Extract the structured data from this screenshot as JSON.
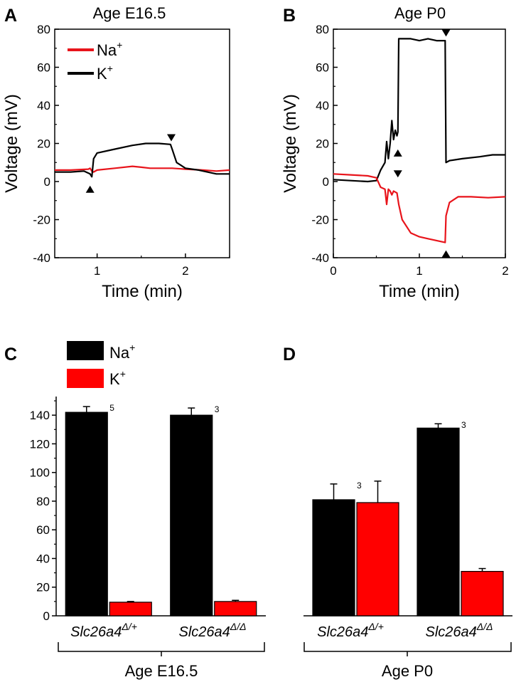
{
  "panels": [
    {
      "letter": "A",
      "title": "Age E16.5"
    },
    {
      "letter": "B",
      "title": "Age P0"
    },
    {
      "letter": "C"
    },
    {
      "letter": "D"
    }
  ],
  "legend_top": [
    {
      "label": "Na",
      "sup": "+",
      "color": "#e8141b"
    },
    {
      "label": "K",
      "sup": "+",
      "color": "#000000"
    }
  ],
  "legend_bottom": [
    {
      "label": "Na",
      "sup": "+",
      "color": "#000000"
    },
    {
      "label": "K",
      "sup": "+",
      "color": "#ff0000"
    }
  ],
  "genotypes": [
    {
      "base": "Slc26a4",
      "sup": "Δ/+"
    },
    {
      "base": "Slc26a4",
      "sup": "Δ/Δ"
    }
  ],
  "group_labels": [
    "Age E16.5",
    "Age P0"
  ],
  "chart_data": [
    {
      "id": "A",
      "type": "line",
      "title": "Age E16.5",
      "xlabel": "Time (min)",
      "ylabel": "Voltage (mV)",
      "xlim": [
        0.52,
        2.5
      ],
      "ylim": [
        -40,
        80
      ],
      "xticks": [
        1,
        2
      ],
      "yticks": [
        -40,
        -20,
        0,
        20,
        40,
        60,
        80
      ],
      "series": [
        {
          "name": "Na+",
          "color": "#e8141b",
          "points": [
            [
              0.52,
              6
            ],
            [
              0.7,
              6
            ],
            [
              0.9,
              6.5
            ],
            [
              0.92,
              7
            ],
            [
              0.94,
              5.5
            ],
            [
              0.96,
              5
            ],
            [
              1.0,
              6
            ],
            [
              1.2,
              7
            ],
            [
              1.4,
              8
            ],
            [
              1.5,
              7.5
            ],
            [
              1.6,
              7
            ],
            [
              1.8,
              7
            ],
            [
              1.85,
              7
            ],
            [
              2.0,
              6.5
            ],
            [
              2.2,
              6
            ],
            [
              2.35,
              5.5
            ],
            [
              2.5,
              6
            ]
          ]
        },
        {
          "name": "K+",
          "color": "#000000",
          "points": [
            [
              0.52,
              5
            ],
            [
              0.7,
              5
            ],
            [
              0.85,
              5.5
            ],
            [
              0.92,
              4
            ],
            [
              0.94,
              2.5
            ],
            [
              0.96,
              12
            ],
            [
              1.0,
              15
            ],
            [
              1.2,
              17
            ],
            [
              1.4,
              19
            ],
            [
              1.55,
              20
            ],
            [
              1.7,
              20
            ],
            [
              1.83,
              19.5
            ],
            [
              1.85,
              17
            ],
            [
              1.9,
              10
            ],
            [
              2.0,
              7
            ],
            [
              2.15,
              6
            ],
            [
              2.35,
              4
            ],
            [
              2.5,
              4
            ]
          ]
        }
      ],
      "markers": [
        {
          "x": 0.92,
          "y": -4,
          "dir": "up"
        },
        {
          "x": 1.84,
          "y": 23,
          "dir": "down"
        }
      ]
    },
    {
      "id": "B",
      "type": "line",
      "title": "Age P0",
      "xlabel": "Time (min)",
      "ylabel": "Voltage (mV)",
      "xlim": [
        0,
        2
      ],
      "ylim": [
        -40,
        80
      ],
      "xticks": [
        0,
        1,
        2
      ],
      "yticks": [
        -40,
        -20,
        0,
        20,
        40,
        60,
        80
      ],
      "series": [
        {
          "name": "K+",
          "color": "#000000",
          "points": [
            [
              0,
              1
            ],
            [
              0.2,
              0.5
            ],
            [
              0.4,
              0
            ],
            [
              0.5,
              0.5
            ],
            [
              0.55,
              6
            ],
            [
              0.6,
              10
            ],
            [
              0.62,
              21
            ],
            [
              0.64,
              12
            ],
            [
              0.66,
              20
            ],
            [
              0.68,
              32
            ],
            [
              0.7,
              22
            ],
            [
              0.72,
              27
            ],
            [
              0.74,
              24
            ],
            [
              0.75,
              26
            ],
            [
              0.76,
              75
            ],
            [
              0.9,
              75
            ],
            [
              1.0,
              74
            ],
            [
              1.1,
              75
            ],
            [
              1.2,
              74
            ],
            [
              1.3,
              74
            ],
            [
              1.31,
              10
            ],
            [
              1.35,
              11
            ],
            [
              1.5,
              12
            ],
            [
              1.7,
              13
            ],
            [
              1.85,
              14
            ],
            [
              2.0,
              14
            ]
          ]
        },
        {
          "name": "Na+",
          "color": "#e8141b",
          "points": [
            [
              0,
              4
            ],
            [
              0.2,
              3.5
            ],
            [
              0.4,
              3
            ],
            [
              0.5,
              2
            ],
            [
              0.55,
              -3
            ],
            [
              0.6,
              -4
            ],
            [
              0.62,
              -12
            ],
            [
              0.64,
              -4
            ],
            [
              0.66,
              -5
            ],
            [
              0.68,
              -7
            ],
            [
              0.7,
              -5
            ],
            [
              0.74,
              -6
            ],
            [
              0.76,
              -12
            ],
            [
              0.8,
              -20
            ],
            [
              0.9,
              -27
            ],
            [
              1.0,
              -29
            ],
            [
              1.1,
              -30
            ],
            [
              1.2,
              -31
            ],
            [
              1.3,
              -32
            ],
            [
              1.31,
              -18
            ],
            [
              1.35,
              -11
            ],
            [
              1.45,
              -8
            ],
            [
              1.6,
              -8
            ],
            [
              1.8,
              -8.5
            ],
            [
              2.0,
              -8
            ]
          ]
        }
      ],
      "markers": [
        {
          "x": 0.75,
          "y": 15,
          "dir": "up"
        },
        {
          "x": 0.75,
          "y": 4,
          "dir": "down"
        },
        {
          "x": 1.31,
          "y": 78,
          "dir": "down"
        },
        {
          "x": 1.31,
          "y": -38,
          "dir": "up"
        }
      ]
    },
    {
      "id": "C",
      "type": "bar",
      "ylim": [
        0,
        153
      ],
      "yticks": [
        0,
        20,
        40,
        60,
        80,
        100,
        120,
        140
      ],
      "categories": [
        "Slc26a4 Δ/+",
        "Slc26a4 Δ/Δ"
      ],
      "series": [
        {
          "name": "Na+",
          "color": "#000000",
          "values": [
            142,
            140
          ],
          "errors": [
            4,
            5
          ],
          "n": [
            "5",
            "3"
          ]
        },
        {
          "name": "K+",
          "color": "#ff0000",
          "values": [
            9.5,
            10
          ],
          "errors": [
            0.5,
            0.8
          ],
          "n": [
            "",
            ""
          ]
        }
      ]
    },
    {
      "id": "D",
      "type": "bar",
      "ylim": [
        0,
        153
      ],
      "yticks": [
        0,
        20,
        40,
        60,
        80,
        100,
        120,
        140
      ],
      "categories": [
        "Slc26a4 Δ/+",
        "Slc26a4 Δ/Δ"
      ],
      "series": [
        {
          "name": "Na+",
          "color": "#000000",
          "values": [
            81,
            131
          ],
          "errors": [
            11,
            3
          ],
          "n": [
            "3",
            "3"
          ]
        },
        {
          "name": "K+",
          "color": "#ff0000",
          "values": [
            79,
            31
          ],
          "errors": [
            15,
            2
          ],
          "n": [
            "",
            ""
          ]
        }
      ]
    }
  ]
}
